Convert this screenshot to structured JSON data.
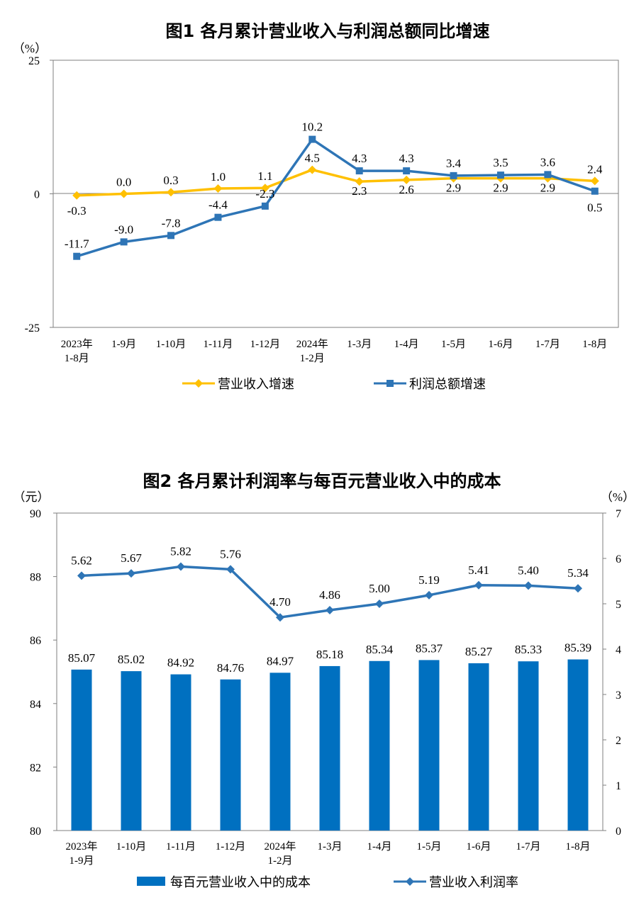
{
  "chart_data": [
    {
      "type": "line",
      "title": "图1  各月累计营业收入与利润总额同比增速",
      "ylabel": "（%）",
      "ylim": [
        -25,
        25
      ],
      "yticks": [
        25,
        0,
        -25
      ],
      "categories": [
        [
          "2023年",
          "1-8月"
        ],
        [
          "1-9月"
        ],
        [
          "1-10月"
        ],
        [
          "1-11月"
        ],
        [
          "1-12月"
        ],
        [
          "2024年",
          "1-2月"
        ],
        [
          "1-3月"
        ],
        [
          "1-4月"
        ],
        [
          "1-5月"
        ],
        [
          "1-6月"
        ],
        [
          "1-7月"
        ],
        [
          "1-8月"
        ]
      ],
      "series": [
        {
          "name": "营业收入增速",
          "color": "#FFC000",
          "marker": "diamond",
          "values": [
            -0.3,
            0.0,
            0.3,
            1.0,
            1.1,
            4.5,
            2.3,
            2.6,
            2.9,
            2.9,
            2.9,
            2.4
          ],
          "labels": [
            "-0.3",
            "0.0",
            "0.3",
            "1.0",
            "1.1",
            "4.5",
            "2.3",
            "2.6",
            "2.9",
            "2.9",
            "2.9",
            "2.4"
          ]
        },
        {
          "name": "利润总额增速",
          "color": "#2E75B6",
          "marker": "square",
          "values": [
            -11.7,
            -9.0,
            -7.8,
            -4.4,
            -2.3,
            10.2,
            4.3,
            4.3,
            3.4,
            3.5,
            3.6,
            0.5
          ],
          "labels": [
            "-11.7",
            "-9.0",
            "-7.8",
            "-4.4",
            "-2.3",
            "10.2",
            "4.3",
            "4.3",
            "3.4",
            "3.5",
            "3.6",
            "0.5"
          ]
        }
      ]
    },
    {
      "type": "bar+line",
      "title": "图2  各月累计利润率与每百元营业收入中的成本",
      "ylabel_left": "（元）",
      "ylabel_right": "（%）",
      "ylim_left": [
        80,
        90
      ],
      "yticks_left": [
        90,
        88,
        86,
        84,
        82,
        80
      ],
      "ylim_right": [
        0,
        7
      ],
      "yticks_right": [
        7,
        6,
        5,
        4,
        3,
        2,
        1,
        0
      ],
      "categories": [
        [
          "2023年",
          "1-9月"
        ],
        [
          "1-10月"
        ],
        [
          "1-11月"
        ],
        [
          "1-12月"
        ],
        [
          "2024年",
          "1-2月"
        ],
        [
          "1-3月"
        ],
        [
          "1-4月"
        ],
        [
          "1-5月"
        ],
        [
          "1-6月"
        ],
        [
          "1-7月"
        ],
        [
          "1-8月"
        ]
      ],
      "bars": {
        "name": "每百元营业收入中的成本",
        "color": "#0070C0",
        "axis": "left",
        "values": [
          85.07,
          85.02,
          84.92,
          84.76,
          84.97,
          85.18,
          85.34,
          85.37,
          85.27,
          85.33,
          85.39
        ],
        "labels": [
          "85.07",
          "85.02",
          "84.92",
          "84.76",
          "84.97",
          "85.18",
          "85.34",
          "85.37",
          "85.27",
          "85.33",
          "85.39"
        ]
      },
      "line": {
        "name": "营业收入利润率",
        "color": "#2E75B6",
        "marker": "diamond",
        "axis": "right",
        "values": [
          5.62,
          5.67,
          5.82,
          5.76,
          4.7,
          4.86,
          5.0,
          5.19,
          5.41,
          5.4,
          5.34
        ],
        "labels": [
          "5.62",
          "5.67",
          "5.82",
          "5.76",
          "4.70",
          "4.86",
          "5.00",
          "5.19",
          "5.41",
          "5.40",
          "5.34"
        ]
      }
    }
  ]
}
